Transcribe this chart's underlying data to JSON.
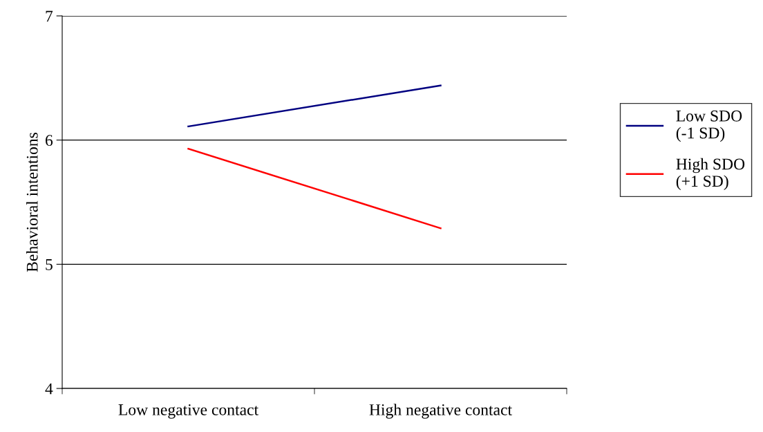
{
  "chart_data": {
    "type": "line",
    "ylabel": "Behavioral intentions",
    "categories": [
      "Low negative contact",
      "High negative contact"
    ],
    "series": [
      {
        "name": "Low SDO\n(-1 SD)",
        "color": "#000080",
        "values": [
          6.11,
          6.44
        ]
      },
      {
        "name": "High SDO\n(+1 SD)",
        "color": "#ff0000",
        "values": [
          5.93,
          5.29
        ]
      }
    ],
    "ylim": [
      4,
      7
    ],
    "yticks": [
      4,
      5,
      6,
      7
    ],
    "grid": "y",
    "legend": "right",
    "marker": "none",
    "line_style": "solid"
  }
}
